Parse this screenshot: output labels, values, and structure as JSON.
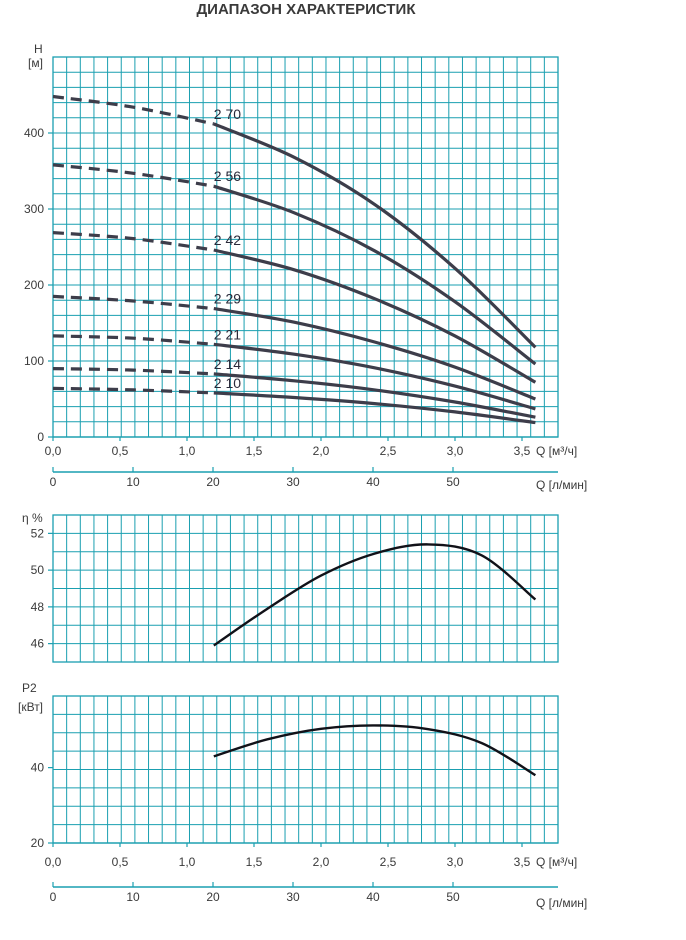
{
  "title": "ДИАПАЗОН ХАРАКТЕРИСТИК",
  "colors": {
    "grid": "#1a9fb0",
    "curve": "#3d3d4a",
    "text": "#3a3a3a"
  },
  "chart_data": [
    {
      "type": "line",
      "name": "head",
      "ylabel_line1": "H",
      "ylabel_line2": "[м]",
      "yticks": [
        0,
        100,
        200,
        300,
        400
      ],
      "ylim": [
        0,
        500
      ],
      "xlim": [
        0,
        3.7
      ],
      "xticks_m3h": [
        "0,0",
        "0,5",
        "1,0",
        "1,5",
        "2,0",
        "2,5",
        "3,0",
        "3,5"
      ],
      "xunit_m3h": "Q [м³/ч]",
      "xticks_lmin": [
        "0",
        "10",
        "20",
        "30",
        "40",
        "50"
      ],
      "xunit_lmin": "Q [л/мин]",
      "dashed_range": [
        0,
        1.2
      ],
      "series": [
        {
          "name": "2 70",
          "x": [
            0,
            0.6,
            1.2,
            1.8,
            2.4,
            3.0,
            3.6
          ],
          "values": [
            448,
            434,
            412,
            368,
            306,
            222,
            118
          ]
        },
        {
          "name": "2 56",
          "x": [
            0,
            0.6,
            1.2,
            1.8,
            2.4,
            3.0,
            3.6
          ],
          "values": [
            358,
            347,
            330,
            295,
            245,
            178,
            96
          ]
        },
        {
          "name": "2 42",
          "x": [
            0,
            0.6,
            1.2,
            1.8,
            2.4,
            3.0,
            3.6
          ],
          "values": [
            269,
            261,
            246,
            220,
            182,
            133,
            72
          ]
        },
        {
          "name": "2 29",
          "x": [
            0,
            0.6,
            1.2,
            1.8,
            2.4,
            3.0,
            3.6
          ],
          "values": [
            185,
            179,
            169,
            151,
            125,
            92,
            50
          ]
        },
        {
          "name": "2 21",
          "x": [
            0,
            0.6,
            1.2,
            1.8,
            2.4,
            3.0,
            3.6
          ],
          "values": [
            133,
            130,
            122,
            109,
            91,
            67,
            37
          ]
        },
        {
          "name": "2 14",
          "x": [
            0,
            0.6,
            1.2,
            1.8,
            2.4,
            3.0,
            3.6
          ],
          "values": [
            90,
            88,
            83,
            74,
            62,
            46,
            26
          ]
        },
        {
          "name": "2 10",
          "x": [
            0,
            0.6,
            1.2,
            1.8,
            2.4,
            3.0,
            3.6
          ],
          "values": [
            64,
            62,
            58,
            52,
            44,
            33,
            19
          ]
        }
      ]
    },
    {
      "type": "line",
      "name": "efficiency",
      "ylabel": "η %",
      "yticks": [
        46,
        48,
        50,
        52
      ],
      "ylim": [
        45,
        53
      ],
      "xlim": [
        0,
        3.7
      ],
      "series": [
        {
          "name": "η",
          "x": [
            1.2,
            1.6,
            2.0,
            2.4,
            2.8,
            3.2,
            3.6
          ],
          "values": [
            45.9,
            47.9,
            49.7,
            50.9,
            51.4,
            50.8,
            48.4
          ]
        }
      ]
    },
    {
      "type": "line",
      "name": "power",
      "ylabel_line1": "P2",
      "ylabel_line2": "[кВт]",
      "yticks": [
        20,
        40
      ],
      "ylim": [
        20,
        59
      ],
      "xlim": [
        0,
        3.7
      ],
      "xticks_m3h": [
        "0,0",
        "0,5",
        "1,0",
        "1,5",
        "2,0",
        "2,5",
        "3,0",
        "3,5"
      ],
      "xunit_m3h": "Q [м³/ч]",
      "xticks_lmin": [
        "0",
        "10",
        "20",
        "30",
        "40",
        "50"
      ],
      "xunit_lmin": "Q [л/мин]",
      "series": [
        {
          "name": "P2",
          "x": [
            1.2,
            1.6,
            2.0,
            2.4,
            2.8,
            3.2,
            3.6
          ],
          "values": [
            43.0,
            47.5,
            50.3,
            51.2,
            50.2,
            46.5,
            38.0
          ]
        }
      ]
    }
  ]
}
